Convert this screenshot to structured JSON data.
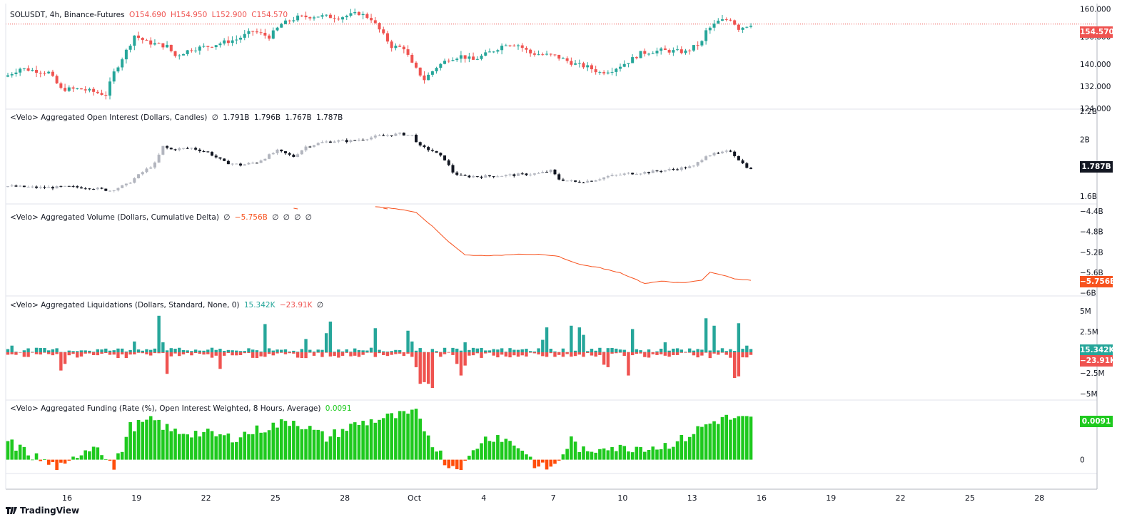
{
  "header": {
    "symbol": "SOLUSDT, 4h, Binance-Futures",
    "open": "O154.690",
    "high": "H154.950",
    "low": "L152.900",
    "close": "C154.570"
  },
  "indicators": {
    "oi": {
      "title": "<Velo> Aggregated Open Interest (Dollars, Candles)",
      "vals": [
        "∅",
        "1.791B",
        "1.796B",
        "1.767B",
        "1.787B"
      ]
    },
    "cvd": {
      "title": "<Velo> Aggregated Volume (Dollars, Cumulative Delta)",
      "vals": [
        "∅",
        "−5.756B",
        "∅",
        "∅",
        "∅",
        "∅"
      ]
    },
    "liq": {
      "title": "<Velo> Aggregated Liquidations (Dollars, Standard, None, 0)",
      "long": "15.342K",
      "short": "−23.91K",
      "tail": "∅"
    },
    "funding": {
      "title": "<Velo> Aggregated Funding (Rate (%), Open Interest Weighted, 8 Hours, Average)",
      "value": "0.0091"
    }
  },
  "badges": {
    "price": "154.570",
    "oi": "1.787B",
    "cvd": "−5.756B",
    "liq_long": "15.342K",
    "liq_short": "−23.91K",
    "funding": "0.0091"
  },
  "colors": {
    "up": "#26a69a",
    "down": "#ef5350",
    "oi_up": "#b2b5be",
    "oi_down": "#131722",
    "cvd": "#f7521e",
    "funding_pos": "#1ec91e",
    "funding_neg": "#ff4d0a"
  },
  "branding": "TradingView",
  "chart_data": [
    {
      "type": "candlestick",
      "title": "SOLUSDT, 4h, Binance-Futures",
      "ylim": [
        124,
        162
      ],
      "y_ticks": [
        "160.000",
        "150.000",
        "140.000",
        "132.000",
        "124.000"
      ],
      "last_price": 154.57,
      "x_ticks": [
        "16",
        "19",
        "22",
        "25",
        "28",
        "Oct",
        "4",
        "7",
        "10",
        "13",
        "16",
        "19",
        "22",
        "25",
        "28"
      ],
      "close_path": [
        [
          0,
          136
        ],
        [
          3,
          138.5
        ],
        [
          10,
          137
        ],
        [
          13,
          131
        ],
        [
          18,
          131
        ],
        [
          24,
          129
        ],
        [
          26,
          137
        ],
        [
          30,
          147.5
        ],
        [
          31,
          150.5
        ],
        [
          34,
          148
        ],
        [
          39,
          146.5
        ],
        [
          41,
          143
        ],
        [
          45,
          145.5
        ],
        [
          49,
          146.5
        ],
        [
          53,
          148
        ],
        [
          56,
          149
        ],
        [
          60,
          152
        ],
        [
          64,
          150
        ],
        [
          67,
          154.5
        ],
        [
          71,
          157
        ],
        [
          76,
          157.5
        ],
        [
          81,
          157
        ],
        [
          86,
          158.5
        ],
        [
          89,
          156.5
        ],
        [
          94,
          146.5
        ],
        [
          97,
          146
        ],
        [
          99,
          140
        ],
        [
          102,
          134.5
        ],
        [
          105,
          139
        ],
        [
          108,
          142
        ],
        [
          111,
          143
        ],
        [
          114,
          141.5
        ],
        [
          119,
          145
        ],
        [
          122,
          147.5
        ],
        [
          125,
          147
        ],
        [
          128,
          144
        ],
        [
          134,
          143
        ],
        [
          139,
          140
        ],
        [
          142,
          139
        ],
        [
          145,
          137
        ],
        [
          148,
          138
        ],
        [
          152,
          141
        ],
        [
          155,
          144
        ],
        [
          160,
          145
        ],
        [
          166,
          144.5
        ],
        [
          170,
          148
        ],
        [
          171,
          152
        ],
        [
          174,
          155.5
        ],
        [
          177,
          156.5
        ],
        [
          179,
          153
        ],
        [
          182,
          154.6
        ]
      ]
    },
    {
      "type": "candlestick",
      "title": "<Velo> Aggregated Open Interest (Dollars, Candles)",
      "ylim": [
        1.55,
        2.2
      ],
      "y_ticks": [
        "2.2B",
        "2B",
        "1.6B"
      ],
      "last_value": "1.787B",
      "close_path": [
        [
          0,
          1.67
        ],
        [
          8,
          1.66
        ],
        [
          15,
          1.665
        ],
        [
          20,
          1.66
        ],
        [
          25,
          1.64
        ],
        [
          29,
          1.68
        ],
        [
          33,
          1.77
        ],
        [
          36,
          1.83
        ],
        [
          38,
          1.95
        ],
        [
          40,
          1.93
        ],
        [
          45,
          1.94
        ],
        [
          49,
          1.91
        ],
        [
          53,
          1.84
        ],
        [
          57,
          1.82
        ],
        [
          61,
          1.84
        ],
        [
          66,
          1.92
        ],
        [
          70,
          1.88
        ],
        [
          73,
          1.95
        ],
        [
          77,
          1.98
        ],
        [
          80,
          1.99
        ],
        [
          84,
          1.99
        ],
        [
          90,
          2.02
        ],
        [
          96,
          2.04
        ],
        [
          99,
          2.03
        ],
        [
          101,
          1.95
        ],
        [
          104,
          1.92
        ],
        [
          107,
          1.86
        ],
        [
          109,
          1.77
        ],
        [
          111,
          1.74
        ],
        [
          117,
          1.74
        ],
        [
          124,
          1.75
        ],
        [
          130,
          1.76
        ],
        [
          133,
          1.78
        ],
        [
          135,
          1.72
        ],
        [
          139,
          1.7
        ],
        [
          143,
          1.71
        ],
        [
          147,
          1.74
        ],
        [
          152,
          1.76
        ],
        [
          157,
          1.77
        ],
        [
          163,
          1.79
        ],
        [
          168,
          1.81
        ],
        [
          171,
          1.89
        ],
        [
          174,
          1.9
        ],
        [
          177,
          1.92
        ],
        [
          180,
          1.83
        ],
        [
          182,
          1.787
        ]
      ]
    },
    {
      "type": "line",
      "title": "<Velo> Aggregated Volume (Dollars, Cumulative Delta)",
      "ylim": [
        -6.05,
        -4.3
      ],
      "y_ticks": [
        "−4.4B",
        "−4.8B",
        "−5.2B",
        "−5.6B",
        "−6B"
      ],
      "last_value": "−5.756B",
      "visible_from_index": 90,
      "path": [
        [
          90,
          -4.31
        ],
        [
          95,
          -4.35
        ],
        [
          100,
          -4.42
        ],
        [
          104,
          -4.7
        ],
        [
          108,
          -5.0
        ],
        [
          112,
          -5.26
        ],
        [
          116,
          -5.27
        ],
        [
          120,
          -5.27
        ],
        [
          125,
          -5.24
        ],
        [
          130,
          -5.25
        ],
        [
          135,
          -5.29
        ],
        [
          138,
          -5.39
        ],
        [
          141,
          -5.46
        ],
        [
          145,
          -5.51
        ],
        [
          150,
          -5.61
        ],
        [
          153,
          -5.71
        ],
        [
          156,
          -5.82
        ],
        [
          160,
          -5.77
        ],
        [
          163,
          -5.8
        ],
        [
          166,
          -5.8
        ],
        [
          170,
          -5.75
        ],
        [
          172,
          -5.6
        ],
        [
          175,
          -5.65
        ],
        [
          178,
          -5.73
        ],
        [
          182,
          -5.756
        ]
      ]
    },
    {
      "type": "bar",
      "title": "<Velo> Aggregated Liquidations (Dollars, Standard, None, 0)",
      "ylim": [
        -5.5,
        5.5
      ],
      "y_ticks": [
        "5M",
        "2.5M",
        "−2.5M",
        "−5M"
      ],
      "last_long": "15.342K",
      "last_short": "−23.91K"
    },
    {
      "type": "bar",
      "title": "<Velo> Aggregated Funding (Rate (%), Open Interest Weighted, 8 Hours, Average)",
      "ylim": [
        -0.003,
        0.012
      ],
      "y_ticks": [
        "0"
      ],
      "last_value": "0.0091",
      "path": [
        [
          0,
          0.004
        ],
        [
          5,
          0.0015
        ],
        [
          10,
          -0.001
        ],
        [
          14,
          -0.002
        ],
        [
          18,
          0.002
        ],
        [
          22,
          0.0035
        ],
        [
          26,
          -0.002
        ],
        [
          30,
          0.0075
        ],
        [
          36,
          0.009
        ],
        [
          40,
          0.0065
        ],
        [
          48,
          0.006
        ],
        [
          55,
          0.005
        ],
        [
          62,
          0.007
        ],
        [
          70,
          0.009
        ],
        [
          78,
          0.005
        ],
        [
          85,
          0.008
        ],
        [
          92,
          0.0095
        ],
        [
          100,
          0.0105
        ],
        [
          104,
          0.004
        ],
        [
          108,
          -0.0015
        ],
        [
          112,
          -0.001
        ],
        [
          116,
          0.0045
        ],
        [
          120,
          0.0055
        ],
        [
          126,
          0.0025
        ],
        [
          130,
          -0.002
        ],
        [
          134,
          -0.0015
        ],
        [
          138,
          0.0045
        ],
        [
          142,
          0.001
        ],
        [
          146,
          0.0035
        ],
        [
          150,
          0.0025
        ],
        [
          154,
          0.003
        ],
        [
          160,
          0.003
        ],
        [
          165,
          0.0045
        ],
        [
          170,
          0.0075
        ],
        [
          175,
          0.0095
        ],
        [
          182,
          0.0091
        ]
      ]
    }
  ]
}
